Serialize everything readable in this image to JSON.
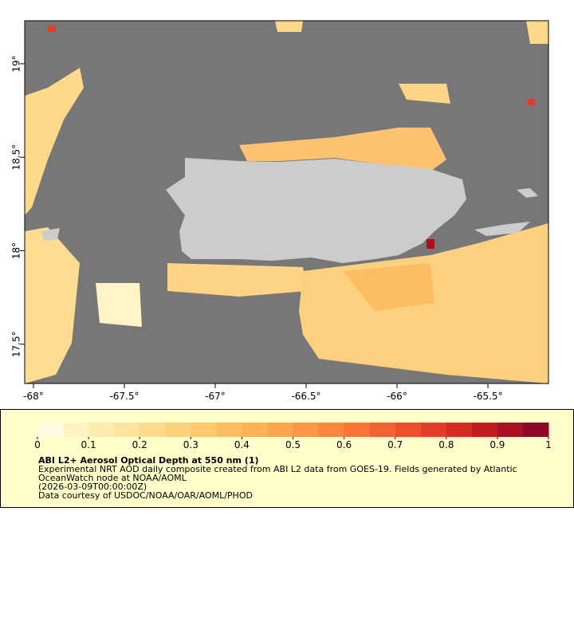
{
  "map": {
    "xlim": [
      -68.048,
      -65.167
    ],
    "ylim": [
      17.29,
      19.23
    ],
    "xticks": [
      {
        "value": -68,
        "label": "-68°"
      },
      {
        "value": -67.5,
        "label": "-67.5°"
      },
      {
        "value": -67,
        "label": "-67°"
      },
      {
        "value": -66.5,
        "label": "-66.5°"
      },
      {
        "value": -66,
        "label": "-66°"
      },
      {
        "value": -65.5,
        "label": "-65.5°"
      }
    ],
    "yticks": [
      {
        "value": 17.5,
        "label": "17.5°"
      },
      {
        "value": 18,
        "label": "18°"
      },
      {
        "value": 18.5,
        "label": "18.5°"
      },
      {
        "value": 19,
        "label": "19°"
      }
    ]
  },
  "colorbar": {
    "lim": [
      0,
      1
    ],
    "ticks": [
      0,
      0.1,
      0.2,
      0.3,
      0.4,
      0.5,
      0.6,
      0.7,
      0.8,
      0.9,
      1
    ],
    "colors": [
      "#fffbe0",
      "#fff3c4",
      "#ffebb0",
      "#fee39c",
      "#fedb8a",
      "#fed27a",
      "#fec86c",
      "#febe60",
      "#fdb256",
      "#fda44d",
      "#fd9645",
      "#fc863e",
      "#f97538",
      "#f46232",
      "#ee502d",
      "#e43d27",
      "#d62b22",
      "#c41b20",
      "#ad0e24",
      "#900626"
    ]
  },
  "caption": {
    "title": "ABI L2+ Aerosol Optical Depth at 550 nm (1)",
    "lines": [
      "Experimental NRT AOD daily composite created from ABI L2 data from GOES-19. Fields generated by Atlantic",
      "OceanWatch node at NOAA/AOML",
      "(2026-03-09T00:00:00Z)",
      "Data courtesy of USDOC/NOAA/OAR/AOML/PHOD"
    ]
  }
}
